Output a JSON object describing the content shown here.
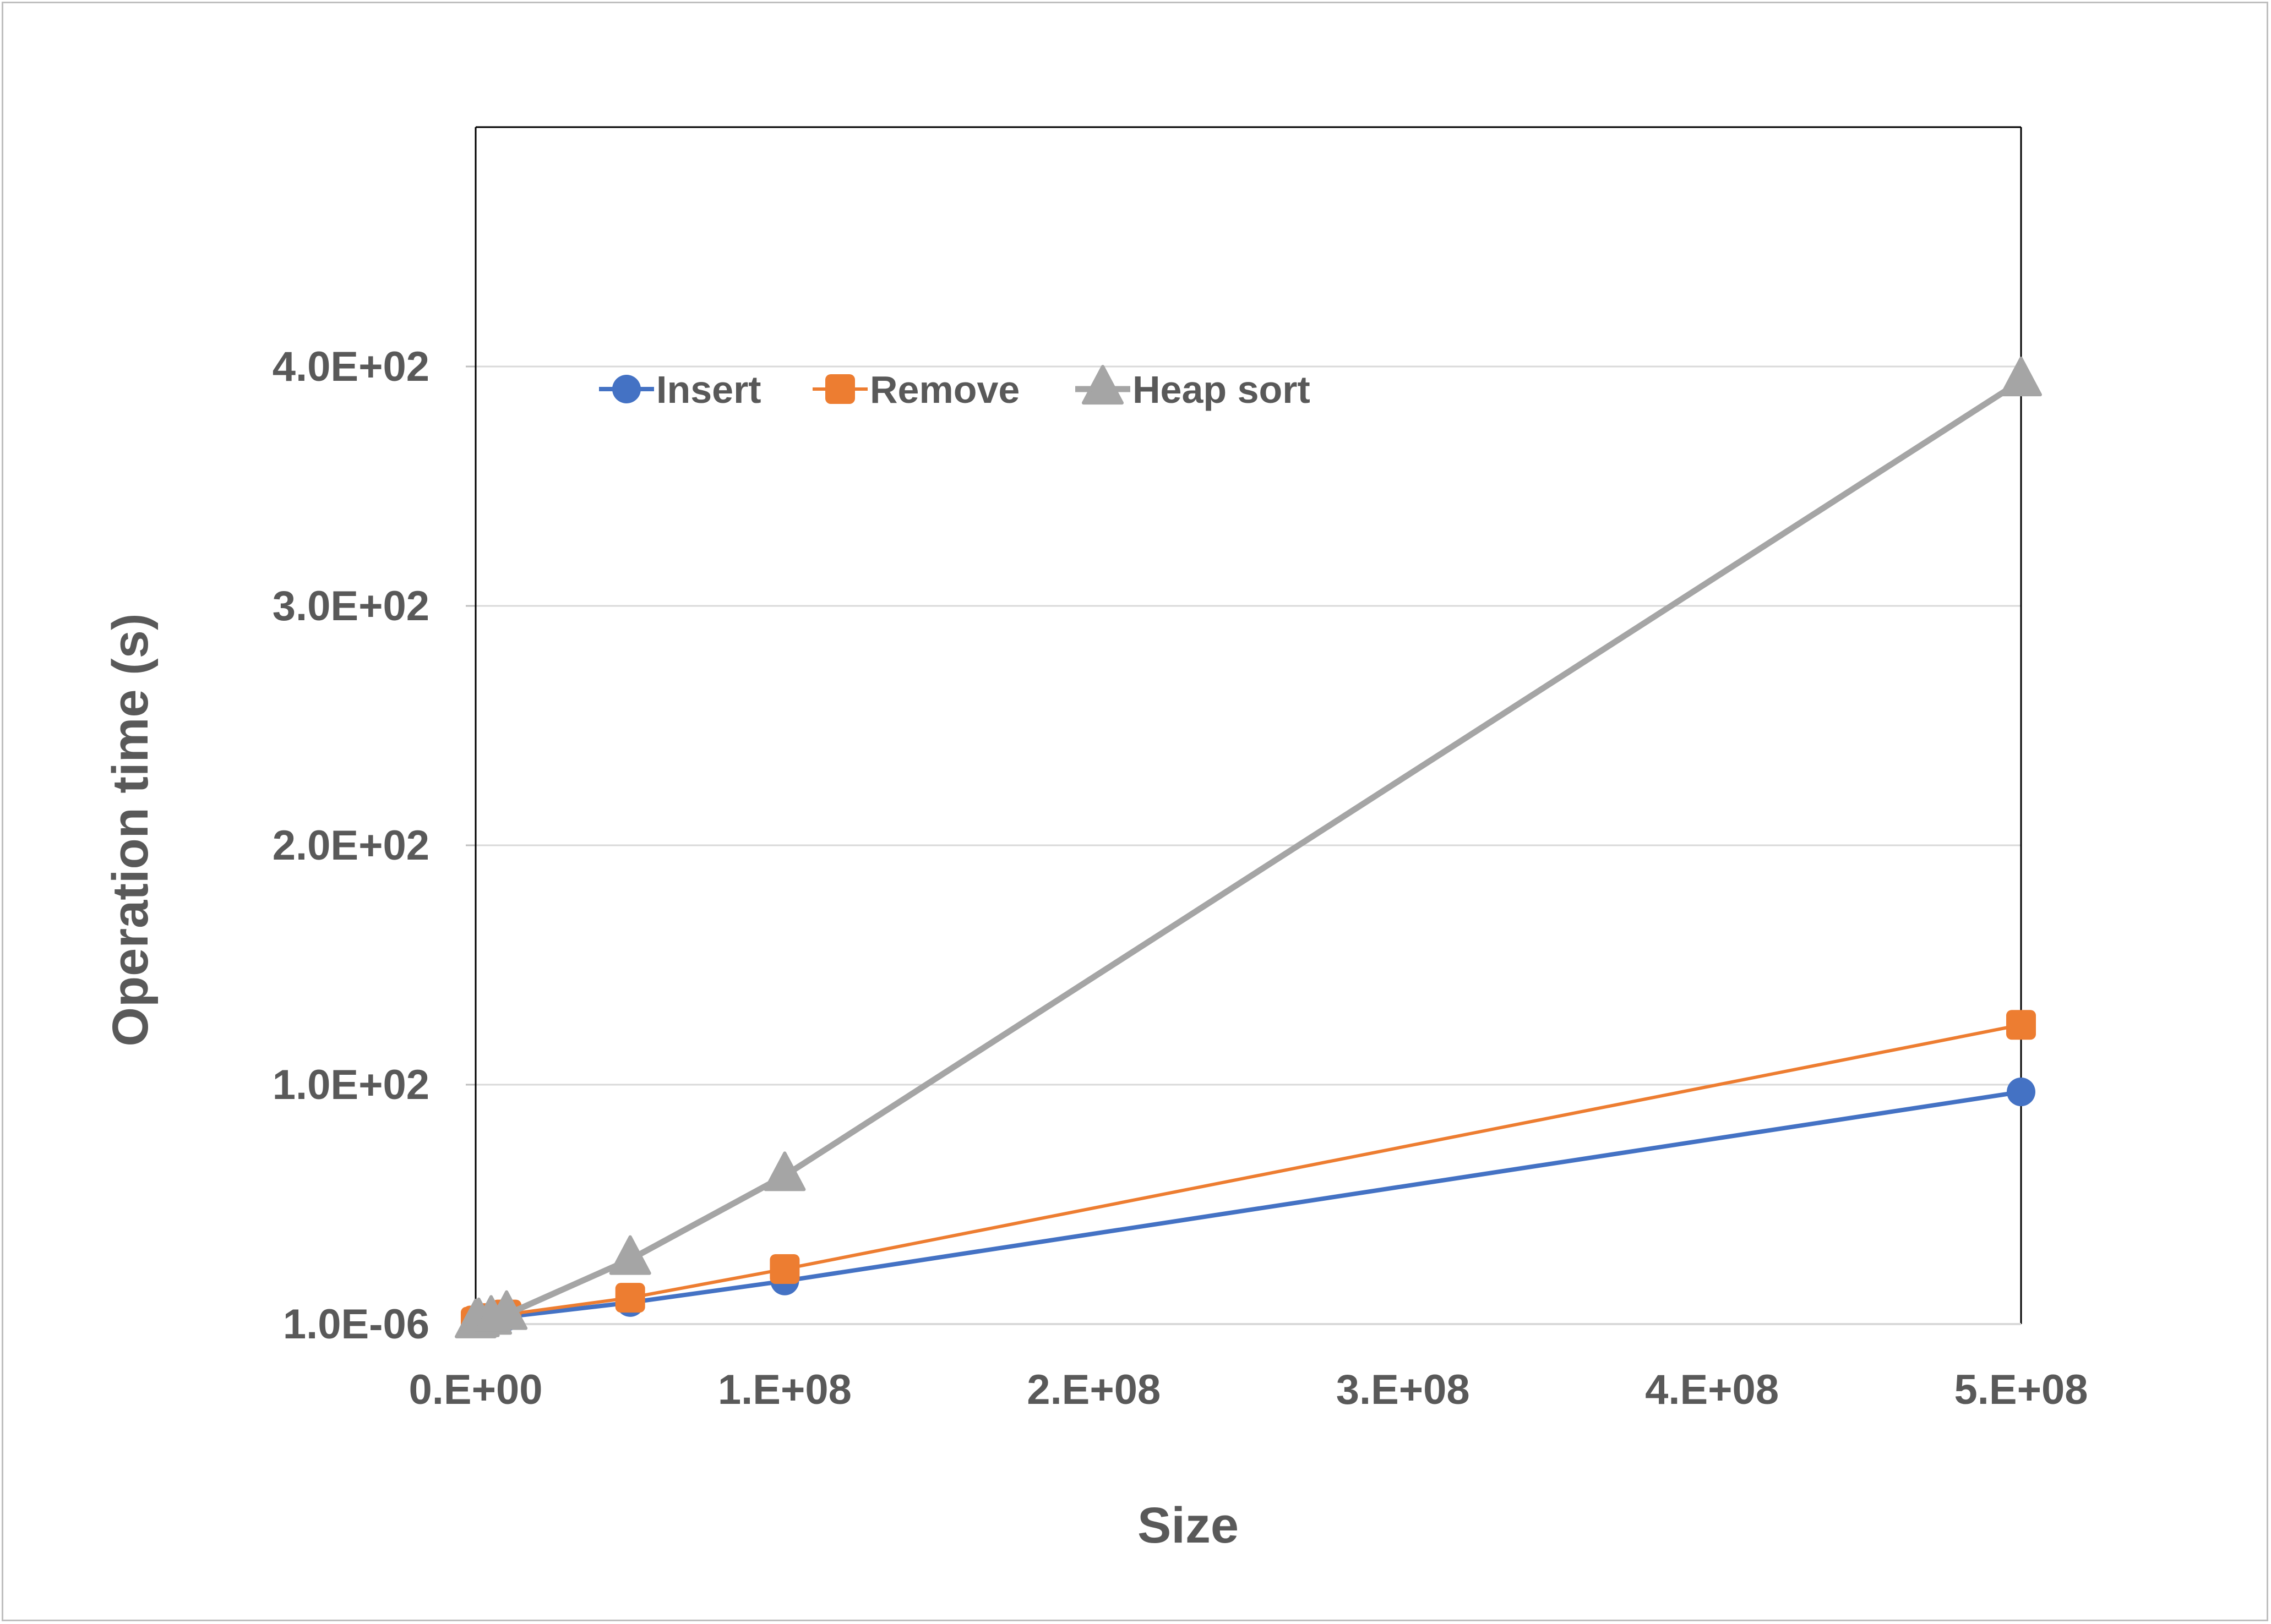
{
  "chart_data": {
    "type": "line",
    "title": "",
    "xlabel": "Size",
    "ylabel": "Operation time (s)",
    "xlim": [
      0,
      500000000
    ],
    "ylim": [
      0,
      500
    ],
    "x_ticks": [
      {
        "value": 0,
        "label": "0.E+00"
      },
      {
        "value": 100000000,
        "label": "1.E+08"
      },
      {
        "value": 200000000,
        "label": "2.E+08"
      },
      {
        "value": 300000000,
        "label": "3.E+08"
      },
      {
        "value": 400000000,
        "label": "4.E+08"
      },
      {
        "value": 500000000,
        "label": "5.E+08"
      }
    ],
    "y_ticks": [
      {
        "value": 0,
        "label": "1.0E-06"
      },
      {
        "value": 100,
        "label": "1.0E+02"
      },
      {
        "value": 200,
        "label": "2.0E+02"
      },
      {
        "value": 300,
        "label": "3.0E+02"
      },
      {
        "value": 400,
        "label": "4.0E+02"
      }
    ],
    "grid": true,
    "legend_position": "top-left",
    "series": [
      {
        "name": "Insert",
        "color": "#4472c4",
        "marker": "circle",
        "x": [
          0,
          1000000,
          5000000,
          10000000,
          50000000,
          100000000,
          500000000
        ],
        "y": [
          0.5,
          1,
          2,
          3,
          9,
          18,
          97
        ]
      },
      {
        "name": "Remove",
        "color": "#ed7d31",
        "marker": "square",
        "x": [
          0,
          1000000,
          5000000,
          10000000,
          50000000,
          100000000,
          500000000
        ],
        "y": [
          1,
          1.5,
          2.5,
          4,
          11,
          23,
          125
        ]
      },
      {
        "name": "Heap sort",
        "color": "#a5a5a5",
        "marker": "triangle",
        "x": [
          0,
          1000000,
          5000000,
          10000000,
          50000000,
          100000000,
          500000000
        ],
        "y": [
          0.5,
          1,
          2,
          4,
          27,
          62,
          394
        ]
      }
    ]
  }
}
